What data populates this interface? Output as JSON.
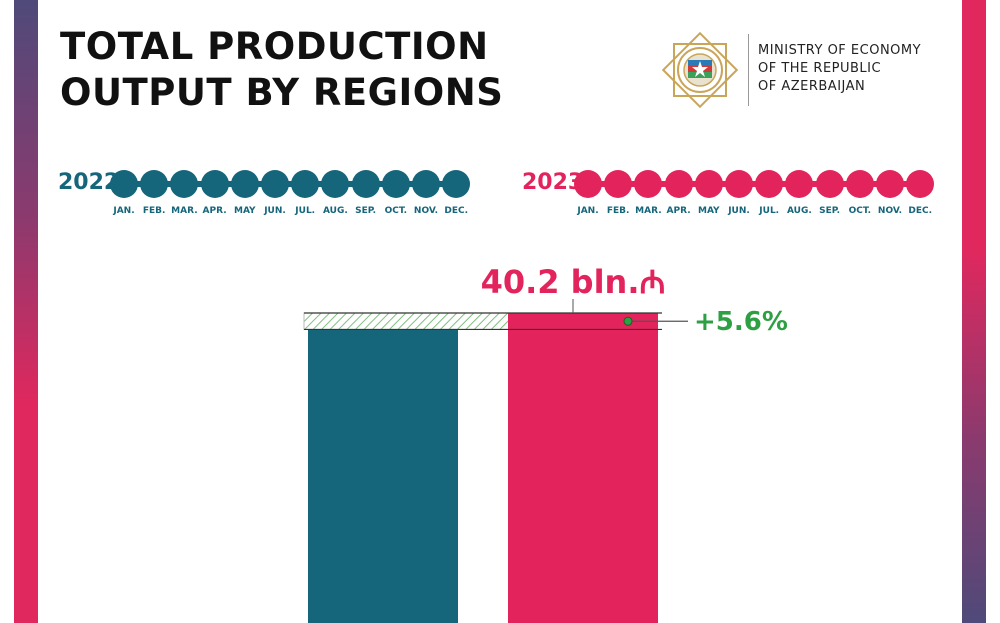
{
  "title": {
    "line1": "TOTAL PRODUCTION",
    "line2": "OUTPUT BY REGIONS"
  },
  "ministry": {
    "line1": "MINISTRY OF ECONOMY",
    "line2": "OF THE REPUBLIC",
    "line3": "OF AZERBAIJAN"
  },
  "timeline": {
    "year_2022": "2022",
    "year_2023": "2023",
    "months": [
      "JAN.",
      "FEB.",
      "MAR.",
      "APR.",
      "MAY",
      "JUN.",
      "JUL.",
      "AUG.",
      "SEP.",
      "OCT.",
      "NOV.",
      "DEC."
    ]
  },
  "colors": {
    "teal": "#15657b",
    "pink": "#e3245c",
    "green": "#2ea043"
  },
  "chart_data": {
    "type": "bar",
    "categories": [
      "2022",
      "2023"
    ],
    "values": [
      38.07,
      40.2
    ],
    "data_labels": [
      "",
      "40.2 bln.₼"
    ],
    "change_label": "+5.6%",
    "series_colors": [
      "#15657b",
      "#e3245c"
    ],
    "title": "",
    "xlabel": "",
    "ylabel": ""
  }
}
